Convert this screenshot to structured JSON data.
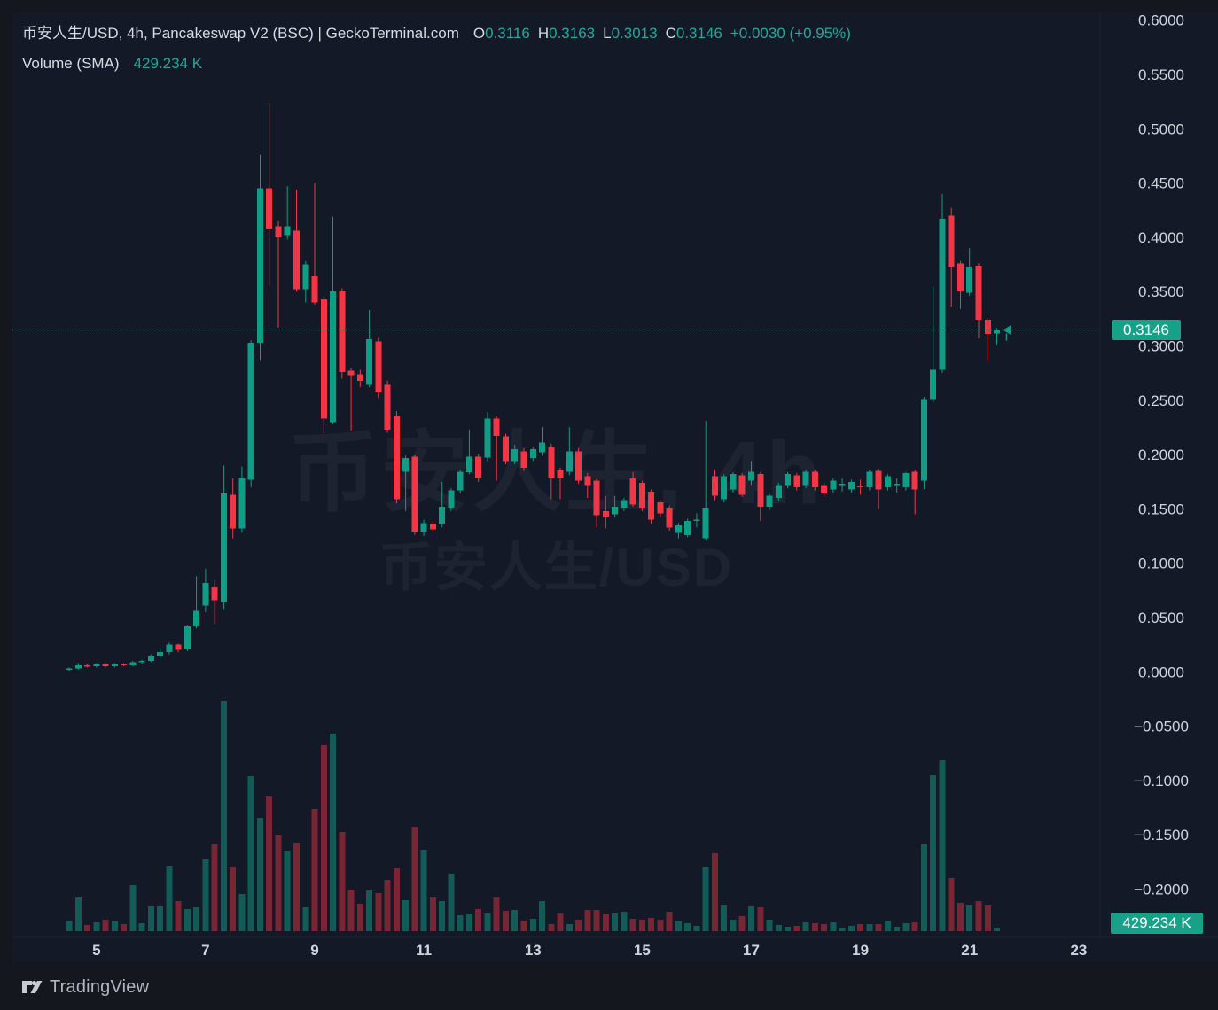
{
  "header": {
    "title": "币安人生/USD, 4h, Pancakeswap V2 (BSC) | GeckoTerminal.com",
    "o_label": "O",
    "o": "0.3116",
    "h_label": "H",
    "h": "0.3163",
    "l_label": "L",
    "l": "0.3013",
    "c_label": "C",
    "c": "0.3146",
    "change": "+0.0030 (+0.95%)",
    "volume_label": "Volume (SMA)",
    "volume_value": "429.234 K"
  },
  "watermark": {
    "line1": "币安人生, 4h",
    "line2": "币安人生/USD"
  },
  "price_axis": {
    "current_price": "0.3146",
    "current_volume": "429.234 K",
    "ticks": [
      {
        "v": 0.6,
        "label": "0.6000"
      },
      {
        "v": 0.55,
        "label": "0.5500"
      },
      {
        "v": 0.5,
        "label": "0.5000"
      },
      {
        "v": 0.45,
        "label": "0.4500"
      },
      {
        "v": 0.4,
        "label": "0.4000"
      },
      {
        "v": 0.35,
        "label": "0.3500"
      },
      {
        "v": 0.3,
        "label": "0.3000"
      },
      {
        "v": 0.25,
        "label": "0.2500"
      },
      {
        "v": 0.2,
        "label": "0.2000"
      },
      {
        "v": 0.15,
        "label": "0.1500"
      },
      {
        "v": 0.1,
        "label": "0.1000"
      },
      {
        "v": 0.05,
        "label": "0.0500"
      },
      {
        "v": 0.0,
        "label": "0.0000"
      },
      {
        "v": -0.05,
        "label": "−0.0500"
      },
      {
        "v": -0.1,
        "label": "−0.1000"
      },
      {
        "v": -0.15,
        "label": "−0.1500"
      },
      {
        "v": -0.2,
        "label": "−0.2000"
      }
    ]
  },
  "time_axis": {
    "ticks": [
      {
        "label": "5",
        "i": 3
      },
      {
        "label": "7",
        "i": 15
      },
      {
        "label": "9",
        "i": 27
      },
      {
        "label": "11",
        "i": 39
      },
      {
        "label": "13",
        "i": 51
      },
      {
        "label": "15",
        "i": 63
      },
      {
        "label": "17",
        "i": 75
      },
      {
        "label": "19",
        "i": 87
      },
      {
        "label": "21",
        "i": 99
      },
      {
        "label": "23",
        "i": 111
      }
    ]
  },
  "attribution": {
    "text": "TradingView"
  },
  "colors": {
    "page_bg": "#14171d",
    "panel_bg": "#141927",
    "up": "#0f9d85",
    "down": "#f23645",
    "volume_up": "rgba(16,157,133,0.5)",
    "volume_down": "rgba(242,54,69,0.45)",
    "badge": "#17a189",
    "axis_text": "#d1d4dc",
    "teal_text": "#26a69a",
    "grid_border": "#20242f",
    "dotted_line": "#26a69a"
  },
  "chart_data": {
    "type": "candlestick+volume",
    "pair": "币安人生/USD",
    "timeframe": "4h",
    "exchange": "Pancakeswap V2 (BSC)",
    "source": "GeckoTerminal.com",
    "last": {
      "open": 0.3116,
      "high": 0.3163,
      "low": 0.3013,
      "close": 0.3146,
      "change": "+0.0030 (+0.95%)"
    },
    "volume_sma": "429.234 K",
    "price_axis_range": [
      -0.225,
      0.615
    ],
    "x_axis_days": [
      5,
      7,
      9,
      11,
      13,
      15,
      17,
      19,
      21,
      23
    ],
    "grid": false,
    "note": "candles are [open, high, low, close, volume]; volume in relative units (tallest bar = 260)",
    "candles": [
      [
        0.002,
        0.004,
        0.001,
        0.003,
        12
      ],
      [
        0.003,
        0.008,
        0.002,
        0.006,
        38
      ],
      [
        0.006,
        0.007,
        0.004,
        0.005,
        7
      ],
      [
        0.005,
        0.008,
        0.004,
        0.007,
        10
      ],
      [
        0.007,
        0.008,
        0.004,
        0.005,
        13
      ],
      [
        0.005,
        0.008,
        0.004,
        0.007,
        11
      ],
      [
        0.007,
        0.008,
        0.005,
        0.006,
        8
      ],
      [
        0.006,
        0.01,
        0.005,
        0.009,
        52
      ],
      [
        0.009,
        0.011,
        0.007,
        0.01,
        9
      ],
      [
        0.01,
        0.016,
        0.009,
        0.015,
        28
      ],
      [
        0.015,
        0.022,
        0.013,
        0.018,
        28
      ],
      [
        0.018,
        0.027,
        0.016,
        0.025,
        73
      ],
      [
        0.025,
        0.026,
        0.018,
        0.02,
        34
      ],
      [
        0.021,
        0.043,
        0.019,
        0.042,
        25
      ],
      [
        0.042,
        0.088,
        0.04,
        0.056,
        27
      ],
      [
        0.061,
        0.095,
        0.055,
        0.082,
        81
      ],
      [
        0.078,
        0.084,
        0.044,
        0.066,
        98
      ],
      [
        0.064,
        0.19,
        0.058,
        0.164,
        260
      ],
      [
        0.163,
        0.178,
        0.123,
        0.132,
        72
      ],
      [
        0.132,
        0.189,
        0.128,
        0.178,
        42
      ],
      [
        0.177,
        0.305,
        0.17,
        0.303,
        175
      ],
      [
        0.303,
        0.476,
        0.287,
        0.445,
        128
      ],
      [
        0.445,
        0.524,
        0.355,
        0.408,
        152
      ],
      [
        0.41,
        0.415,
        0.317,
        0.4,
        108
      ],
      [
        0.402,
        0.447,
        0.398,
        0.41,
        91
      ],
      [
        0.406,
        0.444,
        0.35,
        0.352,
        99
      ],
      [
        0.352,
        0.378,
        0.34,
        0.375,
        27
      ],
      [
        0.364,
        0.45,
        0.338,
        0.34,
        138
      ],
      [
        0.343,
        0.345,
        0.22,
        0.233,
        210
      ],
      [
        0.23,
        0.419,
        0.228,
        0.35,
        223
      ],
      [
        0.351,
        0.353,
        0.27,
        0.276,
        112
      ],
      [
        0.277,
        0.28,
        0.222,
        0.273,
        47
      ],
      [
        0.274,
        0.278,
        0.262,
        0.268,
        31
      ],
      [
        0.265,
        0.333,
        0.262,
        0.306,
        46
      ],
      [
        0.304,
        0.308,
        0.252,
        0.257,
        43
      ],
      [
        0.265,
        0.268,
        0.22,
        0.223,
        58
      ],
      [
        0.235,
        0.24,
        0.155,
        0.159,
        71
      ],
      [
        0.184,
        0.199,
        0.148,
        0.197,
        35
      ],
      [
        0.198,
        0.2,
        0.126,
        0.129,
        117
      ],
      [
        0.129,
        0.14,
        0.125,
        0.137,
        92
      ],
      [
        0.136,
        0.139,
        0.128,
        0.131,
        38
      ],
      [
        0.136,
        0.175,
        0.133,
        0.152,
        34
      ],
      [
        0.151,
        0.169,
        0.148,
        0.167,
        65
      ],
      [
        0.167,
        0.186,
        0.164,
        0.184,
        18
      ],
      [
        0.184,
        0.223,
        0.182,
        0.198,
        19
      ],
      [
        0.198,
        0.201,
        0.175,
        0.178,
        25
      ],
      [
        0.197,
        0.239,
        0.194,
        0.233,
        20
      ],
      [
        0.233,
        0.235,
        0.176,
        0.217,
        38
      ],
      [
        0.217,
        0.219,
        0.191,
        0.194,
        23
      ],
      [
        0.194,
        0.209,
        0.191,
        0.205,
        24
      ],
      [
        0.203,
        0.206,
        0.185,
        0.188,
        12
      ],
      [
        0.197,
        0.207,
        0.194,
        0.205,
        14
      ],
      [
        0.202,
        0.225,
        0.199,
        0.211,
        34
      ],
      [
        0.207,
        0.21,
        0.159,
        0.178,
        8
      ],
      [
        0.186,
        0.188,
        0.159,
        0.178,
        20
      ],
      [
        0.184,
        0.225,
        0.181,
        0.203,
        8
      ],
      [
        0.203,
        0.206,
        0.173,
        0.176,
        13
      ],
      [
        0.18,
        0.183,
        0.16,
        0.172,
        24
      ],
      [
        0.176,
        0.178,
        0.133,
        0.144,
        24
      ],
      [
        0.148,
        0.162,
        0.132,
        0.143,
        19
      ],
      [
        0.145,
        0.162,
        0.142,
        0.152,
        20
      ],
      [
        0.151,
        0.16,
        0.148,
        0.158,
        22
      ],
      [
        0.178,
        0.184,
        0.152,
        0.154,
        14
      ],
      [
        0.174,
        0.176,
        0.148,
        0.151,
        13
      ],
      [
        0.166,
        0.168,
        0.136,
        0.14,
        15
      ],
      [
        0.156,
        0.158,
        0.143,
        0.146,
        13
      ],
      [
        0.151,
        0.153,
        0.13,
        0.133,
        22
      ],
      [
        0.128,
        0.137,
        0.123,
        0.135,
        11
      ],
      [
        0.126,
        0.141,
        0.124,
        0.139,
        9
      ],
      [
        0.139,
        0.146,
        0.133,
        0.14,
        6
      ],
      [
        0.123,
        0.231,
        0.121,
        0.151,
        72
      ],
      [
        0.18,
        0.186,
        0.158,
        0.162,
        88
      ],
      [
        0.159,
        0.182,
        0.156,
        0.18,
        29
      ],
      [
        0.168,
        0.184,
        0.165,
        0.182,
        13
      ],
      [
        0.181,
        0.183,
        0.161,
        0.163,
        17
      ],
      [
        0.176,
        0.194,
        0.172,
        0.184,
        28
      ],
      [
        0.182,
        0.184,
        0.139,
        0.152,
        27
      ],
      [
        0.152,
        0.164,
        0.149,
        0.162,
        13
      ],
      [
        0.16,
        0.174,
        0.157,
        0.172,
        7
      ],
      [
        0.172,
        0.184,
        0.169,
        0.182,
        5
      ],
      [
        0.181,
        0.183,
        0.167,
        0.17,
        6
      ],
      [
        0.172,
        0.186,
        0.169,
        0.184,
        10
      ],
      [
        0.184,
        0.186,
        0.167,
        0.17,
        9
      ],
      [
        0.172,
        0.174,
        0.161,
        0.164,
        8
      ],
      [
        0.168,
        0.178,
        0.165,
        0.176,
        10
      ],
      [
        0.172,
        0.178,
        0.166,
        0.173,
        4
      ],
      [
        0.168,
        0.177,
        0.165,
        0.175,
        6
      ],
      [
        0.171,
        0.177,
        0.163,
        0.17,
        8
      ],
      [
        0.17,
        0.186,
        0.167,
        0.184,
        8
      ],
      [
        0.185,
        0.187,
        0.15,
        0.168,
        8
      ],
      [
        0.17,
        0.182,
        0.167,
        0.18,
        11
      ],
      [
        0.172,
        0.178,
        0.165,
        0.173,
        5
      ],
      [
        0.17,
        0.184,
        0.167,
        0.183,
        9
      ],
      [
        0.184,
        0.186,
        0.145,
        0.168,
        10
      ],
      [
        0.176,
        0.253,
        0.168,
        0.251,
        98
      ],
      [
        0.251,
        0.355,
        0.248,
        0.278,
        176
      ],
      [
        0.278,
        0.44,
        0.275,
        0.417,
        193
      ],
      [
        0.42,
        0.427,
        0.336,
        0.373,
        60
      ],
      [
        0.376,
        0.378,
        0.334,
        0.35,
        32
      ],
      [
        0.349,
        0.39,
        0.346,
        0.373,
        29
      ],
      [
        0.374,
        0.376,
        0.307,
        0.324,
        34
      ],
      [
        0.324,
        0.326,
        0.286,
        0.311,
        29
      ],
      [
        0.3116,
        0.3163,
        0.3013,
        0.3146,
        4
      ]
    ]
  }
}
